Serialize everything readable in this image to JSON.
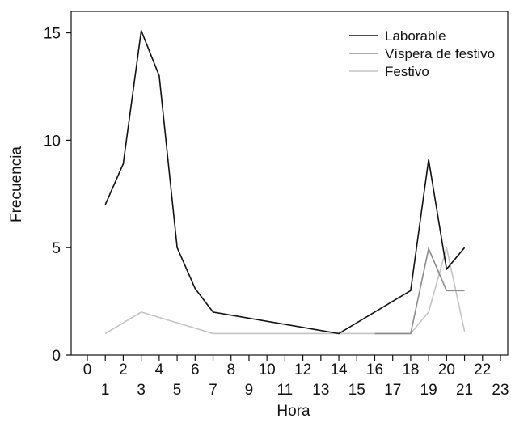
{
  "chart_data": {
    "type": "line",
    "xlabel": "Hora",
    "ylabel": "Frecuencia",
    "xlim": [
      0,
      23
    ],
    "ylim": [
      0,
      16
    ],
    "x_ticks_top": [
      "0",
      "2",
      "4",
      "6",
      "8",
      "10",
      "12",
      "14",
      "16",
      "18",
      "20",
      "22"
    ],
    "x_ticks_bottom": [
      "1",
      "3",
      "5",
      "7",
      "9",
      "11",
      "13",
      "15",
      "17",
      "19",
      "21",
      "23"
    ],
    "y_ticks": [
      0,
      5,
      10,
      15
    ],
    "legend_position": "top-right",
    "grid": false,
    "series": [
      {
        "name": "Laborable",
        "color": "#111111",
        "points": [
          [
            1,
            7
          ],
          [
            2,
            8.9
          ],
          [
            3,
            15.1
          ],
          [
            4,
            13
          ],
          [
            5,
            5
          ],
          [
            6,
            3.1
          ],
          [
            7,
            2
          ],
          [
            14,
            1
          ],
          [
            18,
            3
          ],
          [
            19,
            9.1
          ],
          [
            20,
            4
          ],
          [
            21,
            5
          ]
        ]
      },
      {
        "name": "Víspera de festivo",
        "color": "#8c8c8c",
        "points": [
          [
            16,
            1
          ],
          [
            18,
            1
          ],
          [
            19,
            4.95
          ],
          [
            20,
            3
          ],
          [
            21,
            3
          ]
        ]
      },
      {
        "name": "Festivo",
        "color": "#c4c4c4",
        "points": [
          [
            1,
            1
          ],
          [
            3,
            2
          ],
          [
            7,
            1
          ],
          [
            14,
            1
          ],
          [
            18,
            1
          ],
          [
            19,
            2
          ],
          [
            20,
            5
          ],
          [
            21,
            1.1
          ]
        ]
      }
    ]
  }
}
